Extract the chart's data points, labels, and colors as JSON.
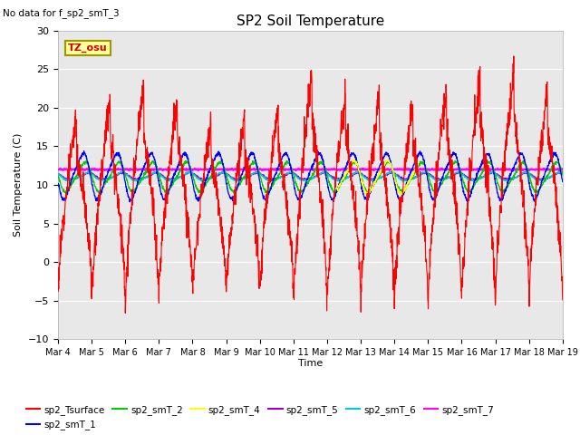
{
  "title": "SP2 Soil Temperature",
  "no_data_label": "No data for f_sp2_smT_3",
  "tz_label": "TZ_osu",
  "ylabel": "Soil Temperature (C)",
  "xlabel": "Time",
  "ylim": [
    -10,
    30
  ],
  "date_labels": [
    "Mar 4",
    "Mar 5",
    "Mar 6",
    "Mar 7",
    "Mar 8",
    "Mar 9",
    "Mar 10",
    "Mar 11",
    "Mar 12",
    "Mar 13",
    "Mar 14",
    "Mar 15",
    "Mar 16",
    "Mar 17",
    "Mar 18",
    "Mar 19"
  ],
  "series_colors": {
    "sp2_Tsurface": "#ff0000",
    "sp2_smT_1": "#0000ff",
    "sp2_smT_2": "#00cc00",
    "sp2_smT_4": "#ffff00",
    "sp2_smT_5": "#9900cc",
    "sp2_smT_6": "#00cccc",
    "sp2_smT_7": "#ff00ff"
  },
  "bg_color": "#e8e8e8",
  "grid_color": "#ffffff",
  "fig_bg": "#ffffff",
  "annotation_bg": "#ffff99",
  "annotation_border": "#999900",
  "yticks": [
    -10,
    -5,
    0,
    5,
    10,
    15,
    20,
    25,
    30
  ]
}
